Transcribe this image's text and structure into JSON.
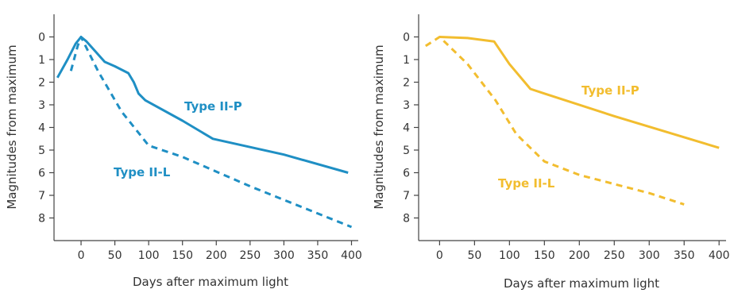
{
  "chart_data": [
    {
      "type": "line",
      "xlabel": "Days after maximum light",
      "ylabel": "Magnitudes from maximum",
      "xlim": [
        -40,
        410
      ],
      "ylim": [
        -1,
        9
      ],
      "y_inverted": true,
      "xticks": [
        0,
        50,
        100,
        150,
        200,
        250,
        300,
        350,
        400
      ],
      "yticks": [
        0,
        1,
        2,
        3,
        4,
        5,
        6,
        7,
        8
      ],
      "color": "#1f8fc4",
      "series": [
        {
          "name": "Type II-P",
          "style": "solid",
          "x": [
            -35,
            -20,
            -8,
            0,
            8,
            20,
            35,
            50,
            70,
            78,
            85,
            95,
            150,
            195,
            300,
            395
          ],
          "y": [
            1.8,
            1.0,
            0.3,
            0.0,
            0.2,
            0.6,
            1.1,
            1.3,
            1.6,
            2.0,
            2.5,
            2.8,
            3.7,
            4.5,
            5.2,
            6.0
          ]
        },
        {
          "name": "Type II-L",
          "style": "dashed",
          "x": [
            -15,
            -5,
            0,
            25,
            60,
            100,
            150,
            250,
            400
          ],
          "y": [
            1.5,
            0.4,
            0.0,
            1.5,
            3.3,
            4.8,
            5.3,
            6.6,
            8.4
          ]
        }
      ]
    },
    {
      "type": "line",
      "xlabel": "Days after maximum light",
      "ylabel": "Magnitudes from maximum",
      "xlim": [
        -30,
        410
      ],
      "ylim": [
        -1,
        9
      ],
      "y_inverted": true,
      "xticks": [
        0,
        50,
        100,
        150,
        200,
        250,
        300,
        350,
        400
      ],
      "yticks": [
        0,
        1,
        2,
        3,
        4,
        5,
        6,
        7,
        8
      ],
      "color": "#f2bd2f",
      "series": [
        {
          "name": "Type II-P",
          "style": "solid",
          "x": [
            0,
            40,
            78,
            100,
            130,
            150,
            250,
            400
          ],
          "y": [
            0.0,
            0.05,
            0.2,
            1.2,
            2.3,
            2.5,
            3.5,
            4.9
          ]
        },
        {
          "name": "Type II-L",
          "style": "dashed",
          "x": [
            -20,
            -5,
            0,
            40,
            80,
            110,
            150,
            200,
            250,
            300,
            350
          ],
          "y": [
            0.4,
            0.1,
            0.0,
            1.2,
            2.8,
            4.3,
            5.5,
            6.1,
            6.5,
            6.9,
            7.4
          ]
        }
      ]
    }
  ]
}
